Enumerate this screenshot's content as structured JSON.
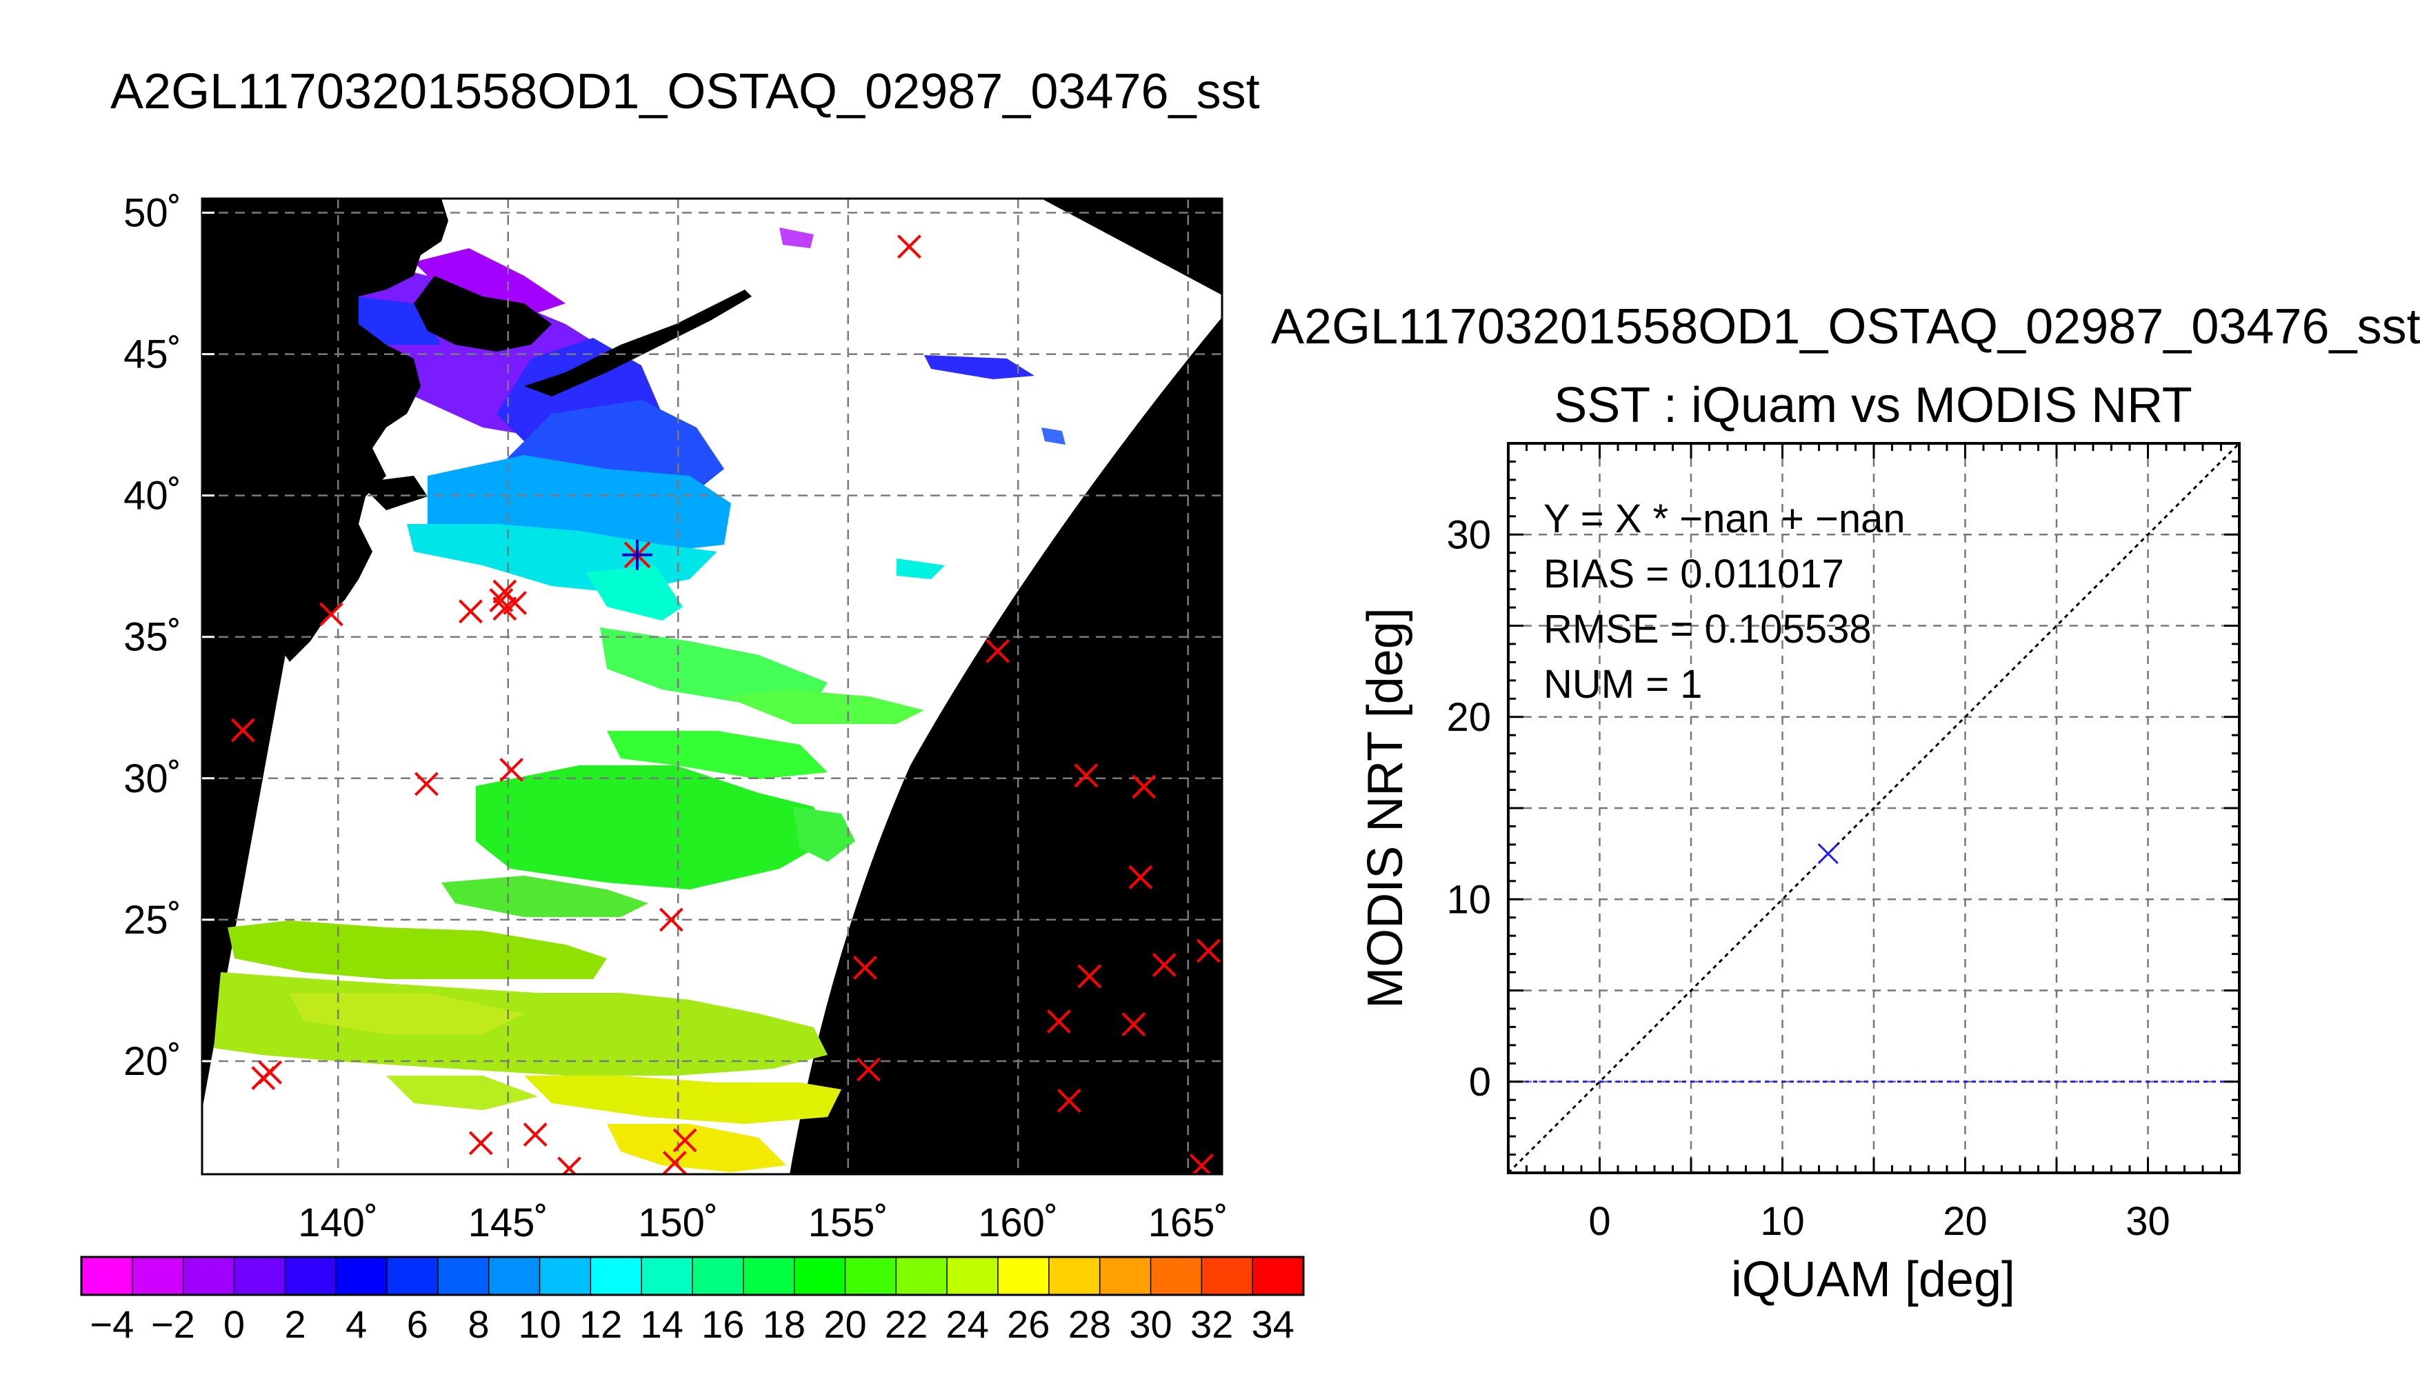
{
  "map": {
    "title": "A2GL11703201558OD1_OSTAQ_02987_03476_sst",
    "lat_labels": [
      "50˚",
      "45˚",
      "40˚",
      "35˚",
      "30˚",
      "25˚",
      "20˚"
    ],
    "lon_labels": [
      "140˚",
      "145˚",
      "150˚",
      "155˚",
      "160˚",
      "165˚"
    ],
    "colorbar_labels": [
      "−4",
      "−2",
      "0",
      "2",
      "4",
      "6",
      "8",
      "10",
      "12",
      "14",
      "16",
      "18",
      "20",
      "22",
      "24",
      "26",
      "28",
      "30",
      "32",
      "34"
    ],
    "colorbar_colors": [
      "#ff00ff",
      "#d000ff",
      "#a000ff",
      "#7000ff",
      "#3000ff",
      "#0000ff",
      "#0030ff",
      "#0060ff",
      "#0090ff",
      "#00c0ff",
      "#00ffff",
      "#00ffc0",
      "#00ff80",
      "#00ff40",
      "#00ff00",
      "#40ff00",
      "#80ff00",
      "#c0ff00",
      "#ffff00",
      "#ffd000",
      "#ffa000",
      "#ff7000",
      "#ff4000",
      "#ff0000"
    ],
    "colors": {
      "land": "#000000",
      "swath_bg": "#ffffff",
      "marker": "#ff0000",
      "grid": "#777777"
    }
  },
  "scatter": {
    "title_top": "A2GL11703201558OD1_OSTAQ_02987_03476_sst",
    "title": "SST : iQuam vs MODIS NRT",
    "stats": [
      "Y = X * −nan + −nan",
      "BIAS = 0.011017",
      "RMSE = 0.105538",
      "NUM = 1"
    ],
    "xlabel": "iQUAM [deg]",
    "ylabel": "MODIS NRT [deg]",
    "xticks": [
      "0",
      "10",
      "20",
      "30"
    ],
    "yticks": [
      "0",
      "10",
      "20",
      "30"
    ]
  },
  "chart_data": [
    {
      "type": "heatmap",
      "title": "A2GL11703201558OD1_OSTAQ_02987_03476_sst",
      "xlim": [
        136,
        166
      ],
      "ylim": [
        16,
        50.5
      ],
      "colorbar_range": [
        -5,
        35
      ],
      "grid": true,
      "insitu_points_lon_lat": [
        [
          137.2,
          31.7
        ],
        [
          137.8,
          19.4
        ],
        [
          138.0,
          19.6
        ],
        [
          139.8,
          35.8
        ],
        [
          142.6,
          29.8
        ],
        [
          143.9,
          35.9
        ],
        [
          144.2,
          17.1
        ],
        [
          144.8,
          36.3
        ],
        [
          144.9,
          36.6
        ],
        [
          144.9,
          36.0
        ],
        [
          145.1,
          30.3
        ],
        [
          145.2,
          36.2
        ],
        [
          145.8,
          17.4
        ],
        [
          146.8,
          16.2
        ],
        [
          149.8,
          25.0
        ],
        [
          149.9,
          16.4
        ],
        [
          150.2,
          17.2
        ],
        [
          155.5,
          23.3
        ],
        [
          155.6,
          19.7
        ],
        [
          156.8,
          48.8
        ],
        [
          159.4,
          34.5
        ],
        [
          161.2,
          21.4
        ],
        [
          161.5,
          18.6
        ],
        [
          162.0,
          30.1
        ],
        [
          162.1,
          23.0
        ],
        [
          163.4,
          21.3
        ],
        [
          163.6,
          26.5
        ],
        [
          163.7,
          29.7
        ],
        [
          164.3,
          23.4
        ],
        [
          165.4,
          16.3
        ],
        [
          165.6,
          23.9
        ]
      ],
      "matchup_point_lon_lat": [
        148.8,
        37.9
      ]
    },
    {
      "type": "scatter",
      "title": "SST : iQuam vs MODIS NRT",
      "xlabel": "iQUAM [deg]",
      "ylabel": "MODIS NRT [deg]",
      "xlim": [
        -5,
        35
      ],
      "ylim": [
        -5,
        35
      ],
      "grid": true,
      "series": [
        {
          "values": [
            [
              12.5,
              12.5
            ]
          ]
        }
      ],
      "reference_lines": {
        "one_to_one": true,
        "zero": true
      }
    }
  ]
}
